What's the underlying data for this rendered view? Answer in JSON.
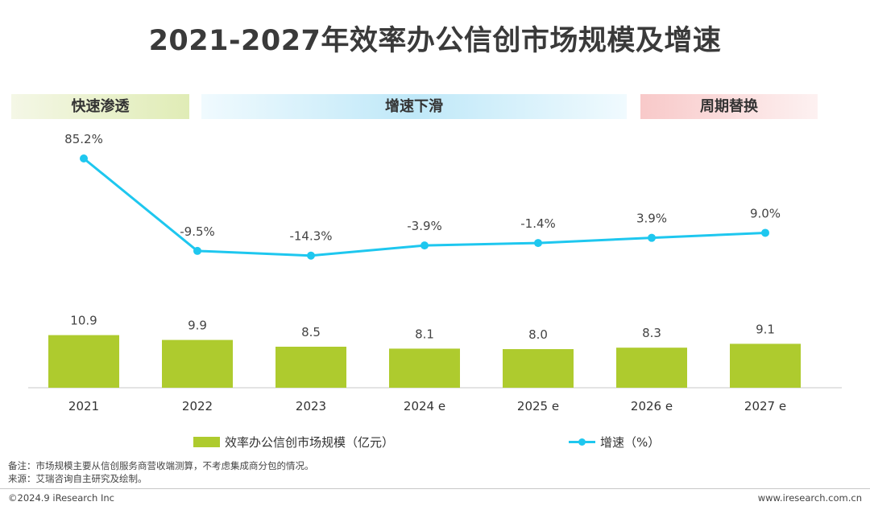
{
  "title": "2021-2027年效率办公信创市场规模及增速",
  "phases": [
    "快速渗透",
    "增速下滑",
    "周期替换"
  ],
  "chart_data": {
    "type": "bar",
    "categories": [
      "2021",
      "2022",
      "2023",
      "2024 e",
      "2025 e",
      "2026 e",
      "2027 e"
    ],
    "series": [
      {
        "name": "效率办公信创市场规模（亿元）",
        "type": "bar",
        "values": [
          10.9,
          9.9,
          8.5,
          8.1,
          8.0,
          8.3,
          9.1
        ],
        "labels": [
          "10.9",
          "9.9",
          "8.5",
          "8.1",
          "8.0",
          "8.3",
          "9.1"
        ],
        "color": "#aecb2e"
      },
      {
        "name": "增速（%）",
        "type": "line",
        "values": [
          85.2,
          -9.5,
          -14.3,
          -3.9,
          -1.4,
          3.9,
          9.0
        ],
        "labels": [
          "85.2%",
          "-9.5%",
          "-14.3%",
          "-3.9%",
          "-1.4%",
          "3.9%",
          "9.0%"
        ],
        "color": "#1ec7ef"
      }
    ],
    "grid": false,
    "legend": "bottom"
  },
  "legend": {
    "bar": "效率办公信创市场规模（亿元）",
    "line": "增速（%）"
  },
  "notes": {
    "note": "备注：市场规模主要从信创服务商营收端测算，不考虑集成商分包的情况。",
    "source": "来源：艾瑞咨询自主研究及绘制。"
  },
  "footer": {
    "copyright": "©2024.9 iResearch Inc",
    "website": "www.iresearch.com.cn"
  }
}
